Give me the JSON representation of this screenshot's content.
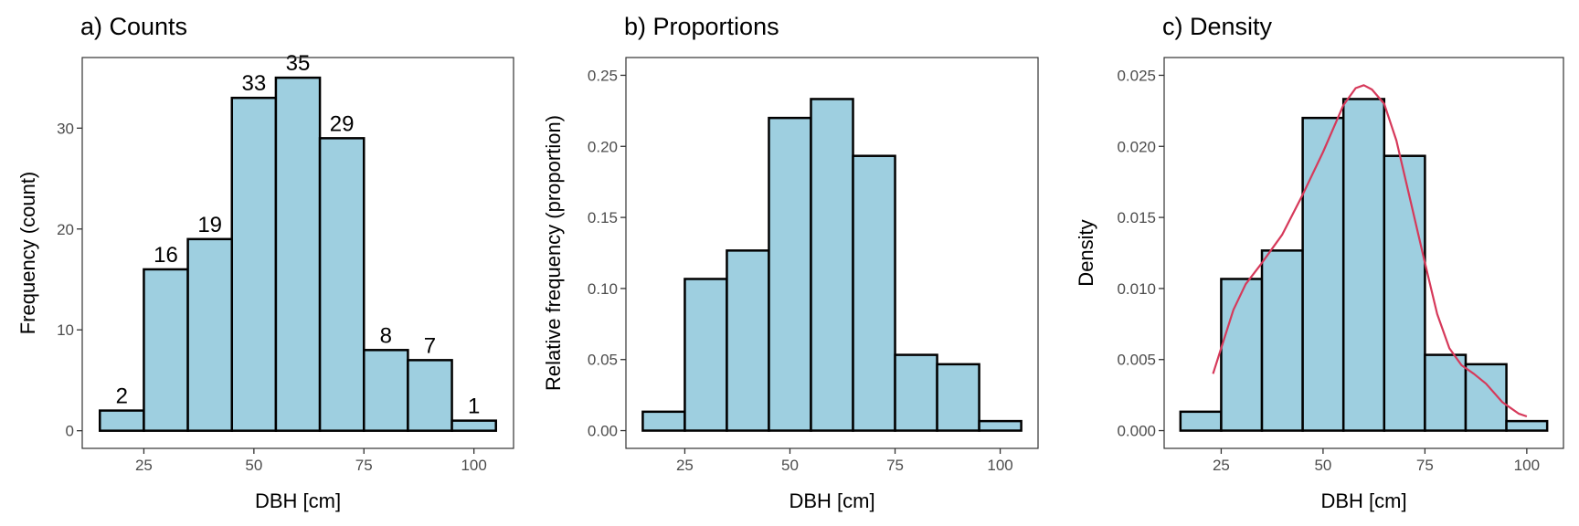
{
  "chart_data": [
    {
      "type": "bar",
      "title": "a) Counts",
      "xlabel": "DBH [cm]",
      "ylabel": "Frequency (count)",
      "bin_edges": [
        15,
        25,
        35,
        45,
        55,
        65,
        75,
        85,
        95,
        105
      ],
      "values": [
        2,
        16,
        19,
        33,
        35,
        29,
        8,
        7,
        1
      ],
      "data_labels": [
        "2",
        "16",
        "19",
        "33",
        "35",
        "29",
        "8",
        "7",
        "1"
      ],
      "xlim": [
        11,
        109
      ],
      "ylim": [
        -1.75,
        37
      ],
      "xticks": [
        25,
        50,
        75,
        100
      ],
      "xtick_labels": [
        "25",
        "50",
        "75",
        "100"
      ],
      "yticks": [
        0,
        10,
        20,
        30
      ],
      "ytick_labels": [
        "0",
        "10",
        "20",
        "30"
      ]
    },
    {
      "type": "bar",
      "title": "b) Proportions",
      "xlabel": "DBH [cm]",
      "ylabel": "Relative frequency (proportion)",
      "bin_edges": [
        15,
        25,
        35,
        45,
        55,
        65,
        75,
        85,
        95,
        105
      ],
      "values": [
        0.0133,
        0.1067,
        0.1267,
        0.22,
        0.2333,
        0.1933,
        0.0533,
        0.0467,
        0.0067
      ],
      "xlim": [
        11,
        109
      ],
      "ylim": [
        -0.0125,
        0.2625
      ],
      "xticks": [
        25,
        50,
        75,
        100
      ],
      "xtick_labels": [
        "25",
        "50",
        "75",
        "100"
      ],
      "yticks": [
        0,
        0.05,
        0.1,
        0.15,
        0.2,
        0.25
      ],
      "ytick_labels": [
        "0.00",
        "0.05",
        "0.10",
        "0.15",
        "0.20",
        "0.25"
      ]
    },
    {
      "type": "bar",
      "title": "c) Density",
      "xlabel": "DBH [cm]",
      "ylabel": "Density",
      "bin_edges": [
        15,
        25,
        35,
        45,
        55,
        65,
        75,
        85,
        95,
        105
      ],
      "values": [
        0.00133,
        0.01067,
        0.01267,
        0.022,
        0.02333,
        0.01933,
        0.00533,
        0.00467,
        0.00067
      ],
      "xlim": [
        11,
        109
      ],
      "ylim": [
        -0.00125,
        0.02625
      ],
      "xticks": [
        25,
        50,
        75,
        100
      ],
      "xtick_labels": [
        "25",
        "50",
        "75",
        "100"
      ],
      "yticks": [
        0,
        0.005,
        0.01,
        0.015,
        0.02,
        0.025
      ],
      "ytick_labels": [
        "0.000",
        "0.005",
        "0.010",
        "0.015",
        "0.020",
        "0.025"
      ],
      "density_curve": {
        "color": "#d6395a",
        "x": [
          23,
          25,
          28,
          31,
          35,
          40,
          45,
          50,
          55,
          58,
          60,
          62,
          65,
          68,
          72,
          75,
          78,
          81,
          84,
          87,
          90,
          94,
          98,
          100
        ],
        "y": [
          0.004,
          0.0058,
          0.0085,
          0.0103,
          0.0118,
          0.0138,
          0.0166,
          0.0196,
          0.0229,
          0.0241,
          0.0243,
          0.024,
          0.023,
          0.0204,
          0.0155,
          0.0118,
          0.0082,
          0.0058,
          0.0046,
          0.004,
          0.0033,
          0.002,
          0.0012,
          0.001
        ]
      }
    }
  ],
  "colors": {
    "bar_fill": "#9ecfe0",
    "bar_stroke": "#000000",
    "curve": "#d6395a",
    "axis": "#333333",
    "tick_text": "#4d4d4d"
  }
}
